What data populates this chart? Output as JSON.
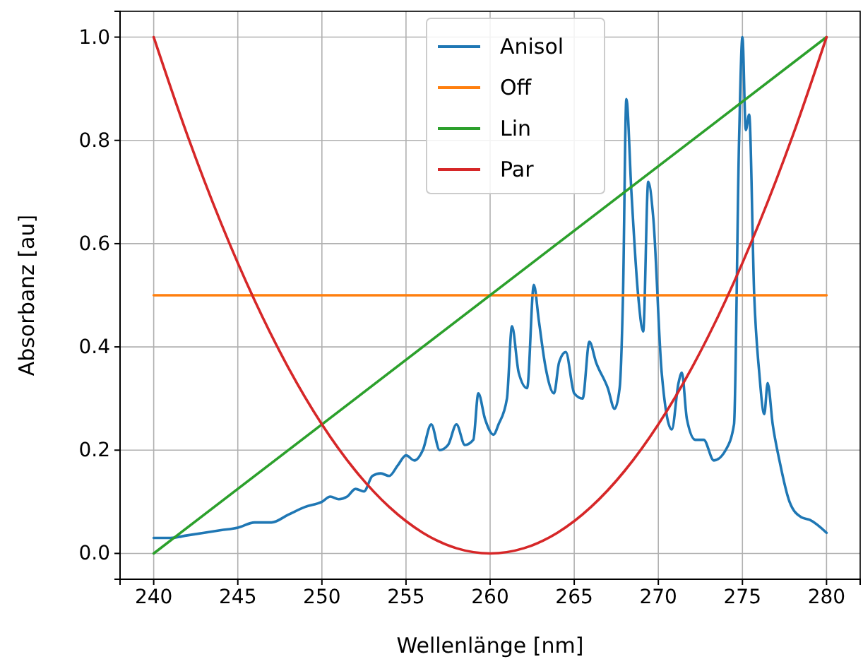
{
  "chart_data": {
    "type": "line",
    "xlabel": "Wellenlänge [nm]",
    "ylabel": "Absorbanz [au]",
    "xlim": [
      238,
      282
    ],
    "ylim": [
      -0.05,
      1.05
    ],
    "xticks": [
      240,
      245,
      250,
      255,
      260,
      265,
      270,
      275,
      280
    ],
    "yticks": [
      {
        "value": 0,
        "label": "0.0"
      },
      {
        "value": 0.2,
        "label": "0.2"
      },
      {
        "value": 0.4,
        "label": "0.4"
      },
      {
        "value": 0.6,
        "label": "0.6"
      },
      {
        "value": 0.8,
        "label": "0.8"
      },
      {
        "value": 1,
        "label": "1.0"
      }
    ],
    "grid": true,
    "legend": "top",
    "marker": "none",
    "line_style": "solid",
    "series": [
      {
        "name": "Anisol",
        "color": "#1f77b4",
        "x": [
          240,
          241,
          242,
          243,
          244,
          245,
          246,
          247,
          248,
          249,
          250,
          250.5,
          251,
          251.5,
          252,
          252.5,
          253,
          253.5,
          254,
          254.5,
          255,
          255.5,
          256,
          256.5,
          257,
          257.5,
          258,
          258.5,
          259,
          259.3,
          259.7,
          260.2,
          260.5,
          261,
          261.3,
          261.7,
          262.2,
          262.6,
          262.9,
          263.3,
          263.8,
          264.1,
          264.5,
          265,
          265.5,
          265.9,
          266.3,
          267,
          267.4,
          267.7,
          267.9,
          268.1,
          268.4,
          268.8,
          269.1,
          269.4,
          269.7,
          270.2,
          270.8,
          271.2,
          271.4,
          271.7,
          272.2,
          272.7,
          273.3,
          274,
          274.5,
          274.8,
          275,
          275.2,
          275.4,
          275.7,
          276,
          276.3,
          276.5,
          276.8,
          277.2,
          277.8,
          278.5,
          279,
          280
        ],
        "values": [
          0.03,
          0.03,
          0.035,
          0.04,
          0.045,
          0.05,
          0.06,
          0.06,
          0.075,
          0.09,
          0.1,
          0.11,
          0.105,
          0.11,
          0.125,
          0.12,
          0.15,
          0.155,
          0.15,
          0.17,
          0.19,
          0.18,
          0.2,
          0.25,
          0.2,
          0.21,
          0.25,
          0.21,
          0.22,
          0.31,
          0.26,
          0.23,
          0.25,
          0.3,
          0.44,
          0.35,
          0.32,
          0.52,
          0.45,
          0.36,
          0.31,
          0.37,
          0.39,
          0.31,
          0.3,
          0.41,
          0.37,
          0.32,
          0.28,
          0.32,
          0.5,
          0.88,
          0.7,
          0.5,
          0.43,
          0.72,
          0.65,
          0.35,
          0.24,
          0.33,
          0.35,
          0.26,
          0.22,
          0.22,
          0.18,
          0.2,
          0.25,
          0.8,
          1.0,
          0.82,
          0.85,
          0.5,
          0.35,
          0.27,
          0.33,
          0.25,
          0.18,
          0.1,
          0.07,
          0.065,
          0.04
        ]
      },
      {
        "name": "Off",
        "color": "#ff7f0e",
        "x": [
          240,
          280
        ],
        "values": [
          0.5,
          0.5
        ]
      },
      {
        "name": "Lin",
        "color": "#2ca02c",
        "x": [
          240,
          280
        ],
        "values": [
          0,
          1
        ]
      },
      {
        "name": "Par",
        "color": "#d62728",
        "x": [
          240,
          242,
          244,
          246,
          248,
          250,
          252,
          254,
          256,
          258,
          260,
          262,
          264,
          266,
          268,
          270,
          272,
          274,
          276,
          278,
          280
        ],
        "values": [
          1,
          0.81,
          0.64,
          0.49,
          0.36,
          0.25,
          0.16,
          0.09,
          0.04,
          0.01,
          0,
          0.01,
          0.04,
          0.09,
          0.16,
          0.25,
          0.36,
          0.49,
          0.64,
          0.81,
          1
        ]
      }
    ]
  }
}
